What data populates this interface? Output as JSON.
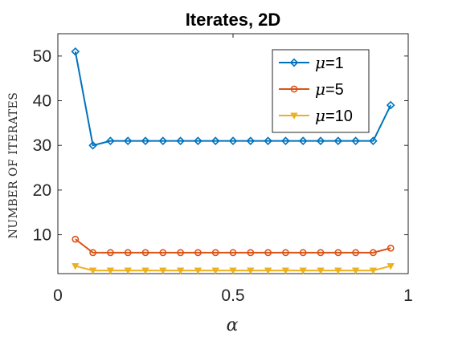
{
  "chart_data": {
    "type": "line",
    "title": "Iterates, 2D",
    "xlabel": "α",
    "ylabel": "NUMBER OF ITERATES",
    "xlim": [
      0,
      1
    ],
    "ylim": [
      1.3,
      55
    ],
    "xticks": [
      0,
      0.5,
      1
    ],
    "xtick_labels": [
      "0",
      "0.5",
      "1"
    ],
    "yticks": [
      10,
      20,
      30,
      40,
      50
    ],
    "ytick_labels": [
      "10",
      "20",
      "30",
      "40",
      "50"
    ],
    "grid": false,
    "legend_position": "top-right",
    "x": [
      0.05,
      0.1,
      0.15,
      0.2,
      0.25,
      0.3,
      0.35,
      0.4,
      0.45,
      0.5,
      0.55,
      0.6,
      0.65,
      0.7,
      0.75,
      0.8,
      0.85,
      0.9,
      0.95
    ],
    "series": [
      {
        "name": "μ=1",
        "name_var": "μ",
        "name_rest": "=1",
        "color": "#0072BD",
        "marker": "diamond",
        "values": [
          51,
          30,
          31,
          31,
          31,
          31,
          31,
          31,
          31,
          31,
          31,
          31,
          31,
          31,
          31,
          31,
          31,
          31,
          39
        ]
      },
      {
        "name": "μ=5",
        "name_var": "μ",
        "name_rest": "=5",
        "color": "#D95319",
        "marker": "circle",
        "values": [
          9,
          6,
          6,
          6,
          6,
          6,
          6,
          6,
          6,
          6,
          6,
          6,
          6,
          6,
          6,
          6,
          6,
          6,
          7
        ]
      },
      {
        "name": "μ=10",
        "name_var": "μ",
        "name_rest": "=10",
        "color": "#EDB120",
        "marker": "triangle-down",
        "values": [
          3,
          2,
          2,
          2,
          2,
          2,
          2,
          2,
          2,
          2,
          2,
          2,
          2,
          2,
          2,
          2,
          2,
          2,
          3
        ]
      }
    ]
  }
}
